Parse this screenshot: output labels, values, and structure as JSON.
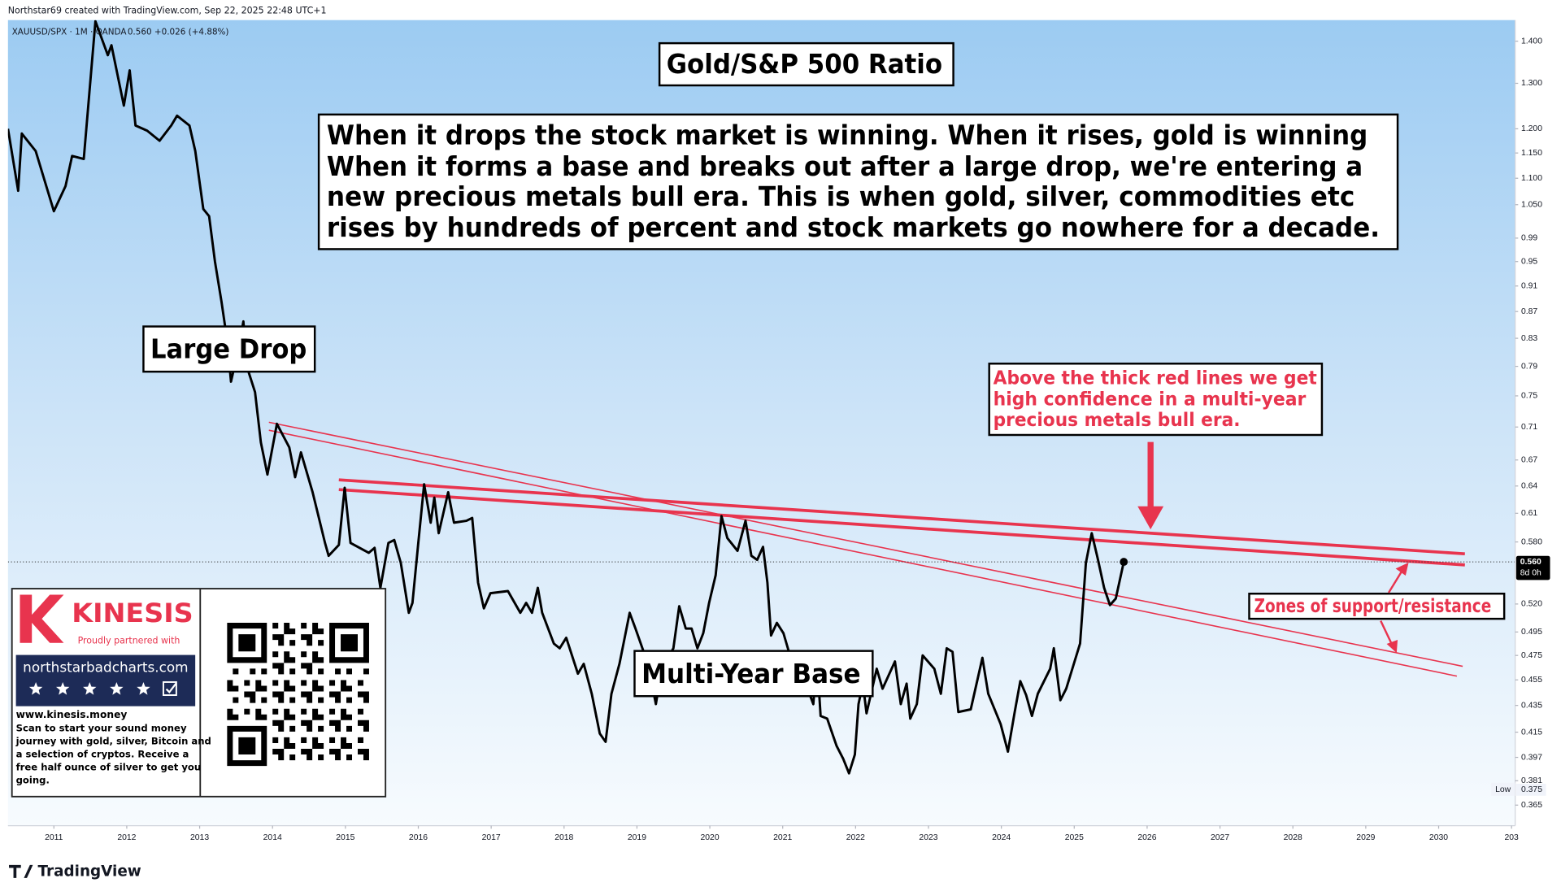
{
  "header": {
    "credit": "Northstar69 created with TradingView.com, Sep 22, 2025 22:48 UTC+1",
    "symbol": "XAUUSD/SPX · 1M · OANDA",
    "quote": "0.560 +0.026 (+4.88%)"
  },
  "chart_data": {
    "type": "line",
    "title": "Gold/S&P 500 Ratio",
    "log_scale": true,
    "grid": false,
    "xlim": [
      2010.37,
      2031.05
    ],
    "ylim": [
      0.352,
      1.453
    ],
    "xticks": [
      2011,
      2012,
      2013,
      2014,
      2015,
      2016,
      2017,
      2018,
      2019,
      2020,
      2021,
      2022,
      2023,
      2024,
      2025,
      2026,
      2027,
      2028,
      2029,
      2030,
      {
        "value": 2031,
        "label": "203"
      }
    ],
    "yticks": [
      {
        "value": 1.4,
        "label": "1.400"
      },
      {
        "value": 1.3,
        "label": "1.300"
      },
      {
        "value": 1.2,
        "label": "1.200"
      },
      {
        "value": 1.15,
        "label": "1.150"
      },
      {
        "value": 1.1,
        "label": "1.100"
      },
      {
        "value": 1.05,
        "label": "1.050"
      },
      0.99,
      0.95,
      0.91,
      0.87,
      0.83,
      0.79,
      0.75,
      0.71,
      0.67,
      0.64,
      0.61,
      {
        "value": 0.58,
        "label": "0.580"
      },
      {
        "value": 0.52,
        "label": "0.520"
      },
      0.495,
      0.475,
      0.455,
      0.435,
      0.415,
      0.397,
      0.381,
      0.365
    ],
    "series": [
      {
        "color": "#000000",
        "x": [
          2010.37,
          2010.51,
          2010.56,
          2010.75,
          2011.0,
          2011.16,
          2011.25,
          2011.41,
          2011.57,
          2011.74,
          2011.79,
          2011.96,
          2012.04,
          2012.12,
          2012.28,
          2012.45,
          2012.61,
          2012.69,
          2012.86,
          2012.94,
          2013.05,
          2013.13,
          2013.21,
          2013.3,
          2013.38,
          2013.43,
          2013.54,
          2013.6,
          2013.65,
          2013.76,
          2013.84,
          2013.93,
          2014.06,
          2014.23,
          2014.31,
          2014.39,
          2014.55,
          2014.72,
          2014.77,
          2014.91,
          2014.99,
          2015.07,
          2015.32,
          2015.4,
          2015.48,
          2015.59,
          2015.67,
          2015.76,
          2015.87,
          2015.92,
          2016.0,
          2016.08,
          2016.17,
          2016.22,
          2016.28,
          2016.41,
          2016.49,
          2016.66,
          2016.74,
          2016.82,
          2016.9,
          2016.99,
          2017.23,
          2017.4,
          2017.48,
          2017.56,
          2017.64,
          2017.7,
          2017.86,
          2017.94,
          2018.03,
          2018.19,
          2018.27,
          2018.38,
          2018.49,
          2018.57,
          2018.65,
          2018.76,
          2018.9,
          2018.98,
          2019.15,
          2019.26,
          2019.34,
          2019.5,
          2019.58,
          2019.67,
          2019.75,
          2019.83,
          2019.91,
          2019.99,
          2020.08,
          2020.16,
          2020.24,
          2020.38,
          2020.49,
          2020.57,
          2020.65,
          2020.73,
          2020.79,
          2020.84,
          2020.92,
          2021.01,
          2021.09,
          2021.17,
          2021.25,
          2021.42,
          2021.47,
          2021.52,
          2021.61,
          2021.74,
          2021.83,
          2021.91,
          2021.99,
          2022.04,
          2022.1,
          2022.15,
          2022.29,
          2022.37,
          2022.54,
          2022.62,
          2022.7,
          2022.75,
          2022.84,
          2022.92,
          2023.08,
          2023.17,
          2023.25,
          2023.33,
          2023.41,
          2023.58,
          2023.74,
          2023.82,
          2023.99,
          2024.09,
          2024.18,
          2024.26,
          2024.34,
          2024.42,
          2024.5,
          2024.67,
          2024.72,
          2024.81,
          2024.89,
          2025.08,
          2025.16,
          2025.24,
          2025.32,
          2025.41,
          2025.49,
          2025.57,
          2025.68
        ],
        "values": [
          1.2,
          1.076,
          1.19,
          1.154,
          1.038,
          1.085,
          1.144,
          1.138,
          1.45,
          1.366,
          1.39,
          1.25,
          1.33,
          1.207,
          1.196,
          1.175,
          1.207,
          1.228,
          1.207,
          1.154,
          1.042,
          1.029,
          0.95,
          0.885,
          0.825,
          0.769,
          0.818,
          0.855,
          0.789,
          0.755,
          0.691,
          0.653,
          0.714,
          0.685,
          0.65,
          0.679,
          0.633,
          0.579,
          0.566,
          0.577,
          0.638,
          0.579,
          0.569,
          0.574,
          0.535,
          0.579,
          0.582,
          0.559,
          0.512,
          0.521,
          0.579,
          0.642,
          0.6,
          0.627,
          0.589,
          0.633,
          0.6,
          0.602,
          0.605,
          0.54,
          0.516,
          0.53,
          0.532,
          0.512,
          0.521,
          0.512,
          0.535,
          0.512,
          0.485,
          0.481,
          0.49,
          0.46,
          0.468,
          0.444,
          0.414,
          0.408,
          0.444,
          0.468,
          0.512,
          0.498,
          0.468,
          0.436,
          0.464,
          0.481,
          0.518,
          0.498,
          0.498,
          0.481,
          0.494,
          0.521,
          0.547,
          0.607,
          0.584,
          0.571,
          0.602,
          0.566,
          0.562,
          0.575,
          0.54,
          0.492,
          0.503,
          0.494,
          0.477,
          0.444,
          0.462,
          0.436,
          0.473,
          0.427,
          0.425,
          0.405,
          0.396,
          0.386,
          0.399,
          0.436,
          0.452,
          0.429,
          0.464,
          0.448,
          0.47,
          0.436,
          0.452,
          0.425,
          0.436,
          0.475,
          0.464,
          0.444,
          0.481,
          0.478,
          0.43,
          0.432,
          0.473,
          0.444,
          0.421,
          0.401,
          0.429,
          0.454,
          0.443,
          0.427,
          0.444,
          0.464,
          0.481,
          0.439,
          0.448,
          0.485,
          0.559,
          0.589,
          0.564,
          0.535,
          0.519,
          0.525,
          0.56
        ]
      }
    ],
    "trendline_color": "#e8344e",
    "trendlines": [
      {
        "x": [
          2014.91,
          2030.36
        ],
        "y": [
          0.647,
          0.568
        ],
        "thick": true
      },
      {
        "x": [
          2014.91,
          2030.36
        ],
        "y": [
          0.636,
          0.557
        ],
        "thick": true
      },
      {
        "x": [
          2013.95,
          2030.33
        ],
        "y": [
          0.716,
          0.466
        ],
        "thick": false
      },
      {
        "x": [
          2013.95,
          2030.25
        ],
        "y": [
          0.706,
          0.458
        ],
        "thick": false
      }
    ],
    "last_price": {
      "value": 0.56,
      "label": "0.560",
      "countdown": "8d 0h"
    },
    "low": {
      "text": "Low",
      "value": 0.375
    },
    "annotations": {
      "summary": [
        "When it drops the stock market is winning. When it rises, gold is winning",
        "When it forms a base and breaks out after a large drop, we're entering a",
        "new precious metals bull era. This is when gold, silver, commodities etc",
        "rises by hundreds of percent and stock markets go nowhere for a decade."
      ],
      "large_drop": "Large Drop",
      "base": "Multi-Year Base",
      "breakout_note": [
        "Above the thick red lines we get",
        "high confidence in a multi-year",
        "precious metals bull era."
      ],
      "zones": "Zones of support/resistance"
    }
  },
  "sponsor": {
    "brand": "KINESIS",
    "tagline": "Proudly partnered with",
    "site": "northstarbadcharts.com",
    "url": "www.kinesis.money",
    "blurb": [
      "Scan to start your sound money",
      "journey with gold, silver, Bitcoin and",
      "a selection of cryptos. Receive a",
      "free half ounce of silver to get you",
      "going."
    ]
  },
  "footer": {
    "brand": "TradingView"
  }
}
